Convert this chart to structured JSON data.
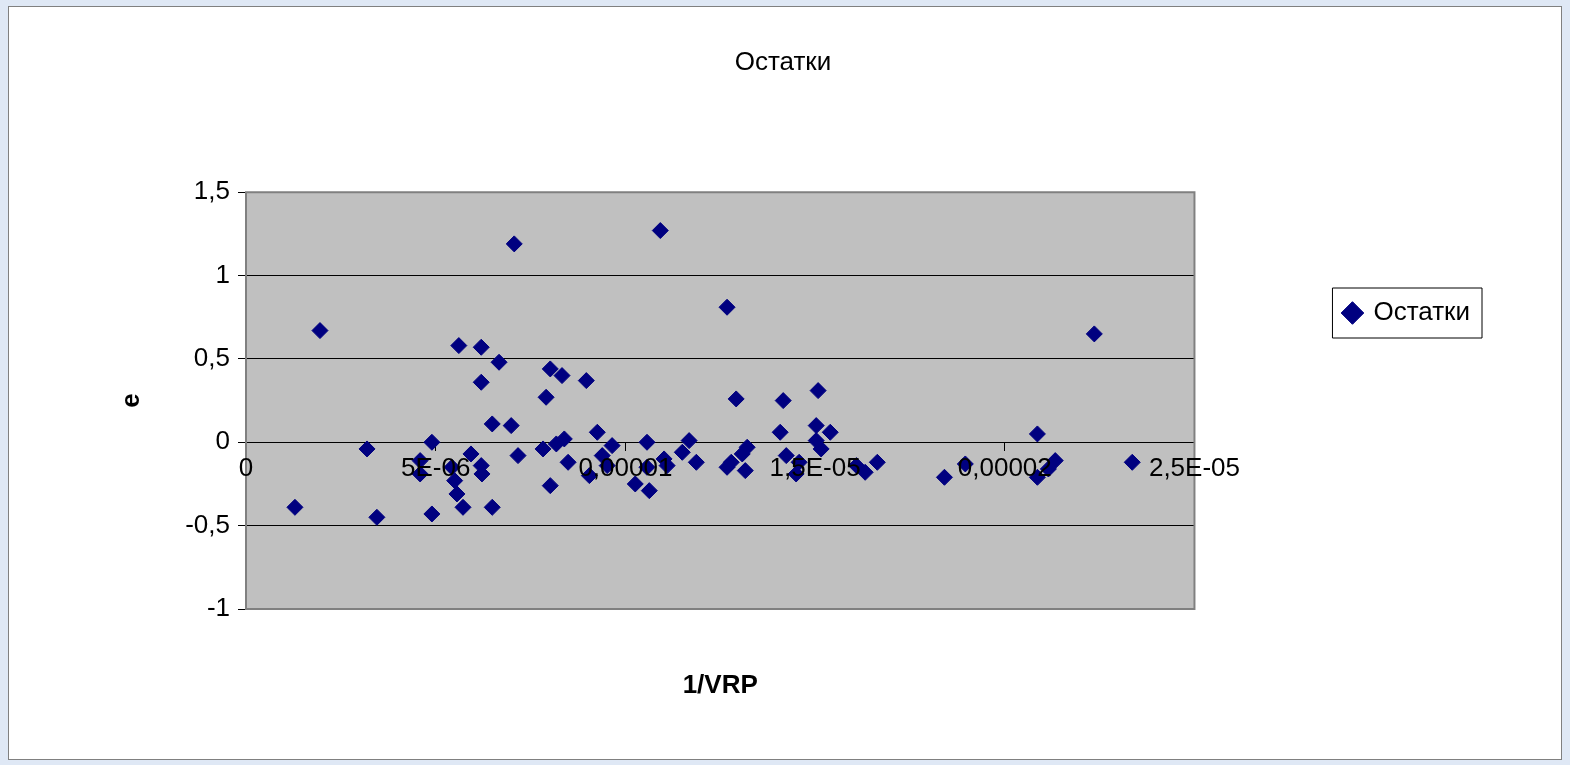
{
  "chart_data": {
    "type": "scatter",
    "title": "Остатки",
    "xlabel": "1/VRP",
    "ylabel": "e",
    "x": [
      1.29e-06,
      1.95e-06,
      3.19e-06,
      3.45e-06,
      4.59e-06,
      4.59e-06,
      4.9e-06,
      4.9e-06,
      5.43e-06,
      5.5e-06,
      5.61e-06,
      5.56e-06,
      5.72e-06,
      5.93e-06,
      6.2e-06,
      6.2e-06,
      6.2e-06,
      6.22e-06,
      6.49e-06,
      6.49e-06,
      6.67e-06,
      6.99e-06,
      7.07e-06,
      7.17e-06,
      7.83e-06,
      7.91e-06,
      8.02e-06,
      8.02e-06,
      8.18e-06,
      8.33e-06,
      8.39e-06,
      8.49e-06,
      8.97e-06,
      9.05e-06,
      9.26e-06,
      9.39e-06,
      9.52e-06,
      9.65e-06,
      1.026e-05,
      1.057e-05,
      1.057e-05,
      1.063e-05,
      1.092e-05,
      1.102e-05,
      1.11e-05,
      1.15e-05,
      1.168e-05,
      1.187e-05,
      1.268e-05,
      1.268e-05,
      1.292e-05,
      1.308e-05,
      1.316e-05,
      1.321e-05,
      1.279e-05,
      1.408e-05,
      1.416e-05,
      1.424e-05,
      1.45e-05,
      1.458e-05,
      1.503e-05,
      1.508e-05,
      1.503e-05,
      1.516e-05,
      1.54e-05,
      1.609e-05,
      1.632e-05,
      1.664e-05,
      1.841e-05,
      1.896e-05,
      2.086e-05,
      2.086e-05,
      2.115e-05,
      2.133e-05,
      2.236e-05,
      2.336e-05
    ],
    "series": [
      {
        "name": "Остатки",
        "color": "#000080",
        "values": [
          -0.39,
          0.67,
          -0.04,
          -0.45,
          -0.11,
          -0.19,
          0.0,
          -0.43,
          -0.15,
          -0.23,
          0.58,
          -0.31,
          -0.39,
          -0.07,
          0.57,
          0.36,
          -0.14,
          -0.19,
          0.11,
          -0.39,
          0.48,
          0.1,
          1.19,
          -0.08,
          -0.04,
          0.27,
          -0.26,
          0.44,
          -0.01,
          0.4,
          0.02,
          -0.12,
          0.37,
          -0.2,
          0.06,
          -0.08,
          -0.14,
          -0.02,
          -0.25,
          0.0,
          -0.15,
          -0.29,
          1.27,
          -0.1,
          -0.14,
          -0.06,
          0.01,
          -0.12,
          0.81,
          -0.15,
          0.26,
          -0.07,
          -0.17,
          -0.03,
          -0.12,
          0.06,
          0.25,
          -0.08,
          -0.19,
          -0.12,
          0.01,
          0.31,
          0.1,
          -0.04,
          0.06,
          -0.14,
          -0.18,
          -0.12,
          -0.21,
          -0.13,
          0.05,
          -0.21,
          -0.16,
          -0.11,
          0.65,
          -0.12
        ]
      }
    ],
    "xlim": [
      0,
      2.5e-05
    ],
    "xticks": [
      0,
      {
        "value": 5e-06,
        "label": "5E-06"
      },
      {
        "value": 1e-05,
        "label": "0,00001"
      },
      {
        "value": 1.5e-05,
        "label": "1,5E-05"
      },
      {
        "value": 2e-05,
        "label": "0,00002"
      },
      {
        "value": 2.5e-05,
        "label": "2,5E-05"
      }
    ],
    "ylim": [
      -1,
      1.5
    ],
    "yticks": [
      -1,
      {
        "value": -0.5,
        "label": "-0,5"
      },
      0,
      {
        "value": 0.5,
        "label": "0,5"
      },
      1,
      {
        "value": 1.5,
        "label": "1,5"
      }
    ],
    "grid": "y",
    "legend": "right",
    "marker": "diamond"
  }
}
